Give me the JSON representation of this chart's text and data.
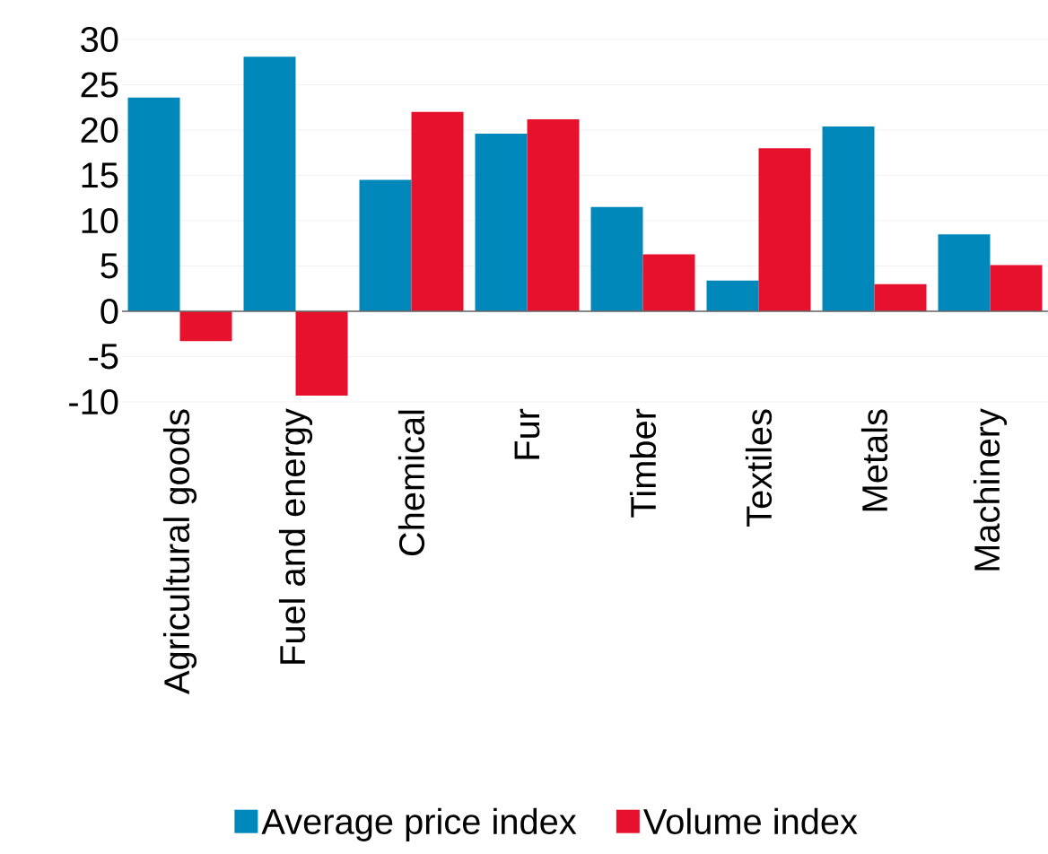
{
  "chart_data": {
    "type": "bar",
    "categories": [
      "Agricultural goods",
      "Fuel and energy",
      "Chemical",
      "Fur",
      "Timber",
      "Textiles",
      "Metals",
      "Machinery"
    ],
    "series": [
      {
        "name": "Average price index",
        "color": "#0088bb",
        "values": [
          23.6,
          28.1,
          14.5,
          19.6,
          11.5,
          3.4,
          20.4,
          8.5
        ]
      },
      {
        "name": "Volume index",
        "color": "#e8112d",
        "values": [
          -3.3,
          -9.3,
          22,
          21.2,
          6.3,
          18,
          3,
          5.1
        ]
      }
    ],
    "ylim": [
      -10,
      30
    ],
    "yticks": [
      -10,
      -5,
      0,
      5,
      10,
      15,
      20,
      25,
      30
    ],
    "grid": "y",
    "legend": "bottom"
  }
}
